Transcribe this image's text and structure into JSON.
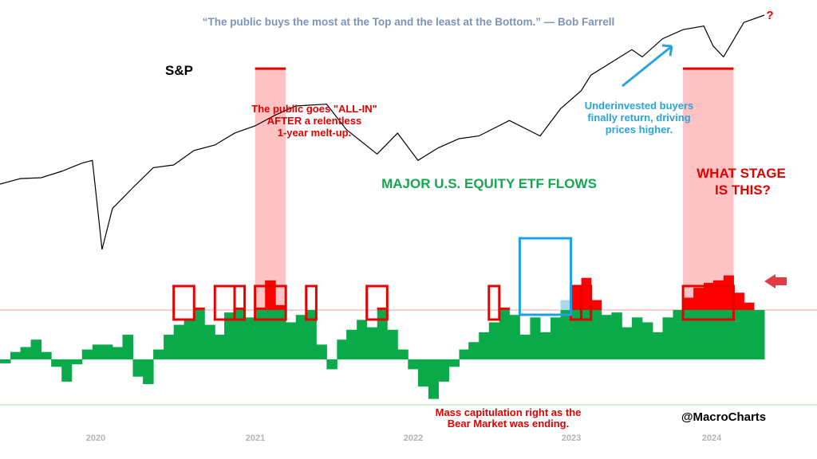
{
  "chart_data": {
    "type": "line",
    "quote": "“The public buys the most at the Top and the least at the Bottom.” — Bob Farrell",
    "title": "MAJOR U.S. EQUITY ETF FLOWS",
    "series_label": "S&P",
    "x_tick_labels": [
      "2020",
      "2021",
      "2022",
      "2023",
      "2024"
    ],
    "axes_visible": false,
    "grid": false,
    "colors": {
      "sp_line": "#000000",
      "flows_positive": "#0aaa4a",
      "flows_negative": "#0aaa4a",
      "flows_extreme": "#ff0000",
      "flows_extreme_2023": "#a6d9ea",
      "highlight_band": "#ffb8b8",
      "threshold_line": "#f3a5a5",
      "box_red": "#e60000",
      "box_blue": "#1da1e6",
      "annotation_red": "#e00000",
      "annotation_blue": "#29a3dd"
    },
    "sp_path": [
      [
        "2019-05",
        0.72
      ],
      [
        "2019-07",
        0.78
      ],
      [
        "2019-09",
        0.79
      ],
      [
        "2019-11",
        0.86
      ],
      [
        "2020-01",
        0.95
      ],
      [
        "2020-02",
        0.98
      ],
      [
        "2020-03",
        0.0
      ],
      [
        "2020-04",
        0.45
      ],
      [
        "2020-06",
        0.68
      ],
      [
        "2020-08",
        0.9
      ],
      [
        "2020-10",
        0.93
      ],
      [
        "2020-12",
        1.09
      ],
      [
        "2021-02",
        1.15
      ],
      [
        "2021-04",
        1.28
      ],
      [
        "2021-06",
        1.36
      ],
      [
        "2021-08",
        1.48
      ],
      [
        "2021-10",
        1.58
      ],
      [
        "2022-01",
        1.6
      ],
      [
        "2022-03",
        1.32
      ],
      [
        "2022-06",
        1.05
      ],
      [
        "2022-08",
        1.28
      ],
      [
        "2022-10",
        0.98
      ],
      [
        "2022-12",
        1.12
      ],
      [
        "2023-02",
        1.22
      ],
      [
        "2023-04",
        1.25
      ],
      [
        "2023-07",
        1.42
      ],
      [
        "2023-10",
        1.25
      ],
      [
        "2023-12",
        1.55
      ],
      [
        "2024-02",
        1.75
      ],
      [
        "2024-03",
        1.92
      ],
      [
        "2024-05",
        2.06
      ],
      [
        "2024-07",
        2.2
      ],
      [
        "2024-08",
        2.12
      ],
      [
        "2024-10",
        2.32
      ],
      [
        "2024-12",
        2.42
      ],
      [
        "2025-02",
        2.46
      ],
      [
        "2025-03",
        2.24
      ],
      [
        "2025-04",
        2.12
      ],
      [
        "2025-06",
        2.5
      ],
      [
        "2025-08",
        2.58
      ]
    ],
    "etf_flows": [
      [
        "2019-05",
        -0.08
      ],
      [
        "2019-06",
        0.15
      ],
      [
        "2019-07",
        0.25
      ],
      [
        "2019-08",
        0.4
      ],
      [
        "2019-09",
        0.15
      ],
      [
        "2019-10",
        -0.15
      ],
      [
        "2019-11",
        -0.45
      ],
      [
        "2019-12",
        -0.1
      ],
      [
        "2020-01",
        0.2
      ],
      [
        "2020-02",
        0.3
      ],
      [
        "2020-03",
        0.3
      ],
      [
        "2020-04",
        0.25
      ],
      [
        "2020-05",
        0.5
      ],
      [
        "2020-06",
        -0.35
      ],
      [
        "2020-07",
        -0.5
      ],
      [
        "2020-08",
        0.2
      ],
      [
        "2020-09",
        0.5
      ],
      [
        "2020-10",
        0.7
      ],
      [
        "2020-11",
        0.8
      ],
      [
        "2020-12",
        1.05
      ],
      [
        "2021-01",
        0.7
      ],
      [
        "2021-02",
        0.5
      ],
      [
        "2021-03",
        0.95
      ],
      [
        "2021-04",
        1.05
      ],
      [
        "2021-05",
        0.85
      ],
      [
        "2021-06",
        1.05
      ],
      [
        "2021-07",
        1.6
      ],
      [
        "2021-08",
        1.1
      ],
      [
        "2021-09",
        0.75
      ],
      [
        "2021-10",
        0.9
      ],
      [
        "2021-11",
        1.0
      ],
      [
        "2021-12",
        0.3
      ],
      [
        "2022-01",
        -0.2
      ],
      [
        "2022-02",
        0.4
      ],
      [
        "2022-03",
        0.6
      ],
      [
        "2022-04",
        0.8
      ],
      [
        "2022-05",
        0.65
      ],
      [
        "2022-06",
        1.05
      ],
      [
        "2022-07",
        0.6
      ],
      [
        "2022-08",
        0.2
      ],
      [
        "2022-09",
        -0.2
      ],
      [
        "2022-10",
        -0.55
      ],
      [
        "2022-11",
        -0.8
      ],
      [
        "2022-12",
        -0.45
      ],
      [
        "2023-01",
        -0.15
      ],
      [
        "2023-02",
        0.2
      ],
      [
        "2023-03",
        0.35
      ],
      [
        "2023-04",
        0.55
      ],
      [
        "2023-05",
        0.75
      ],
      [
        "2023-06",
        1.05
      ],
      [
        "2023-07",
        0.9
      ],
      [
        "2023-08",
        0.5
      ],
      [
        "2023-09",
        0.85
      ],
      [
        "2023-10",
        0.55
      ],
      [
        "2023-11",
        0.85
      ],
      [
        "2023-12",
        1.2
      ],
      [
        "2024-01",
        1.5
      ],
      [
        "2024-02",
        1.65
      ],
      [
        "2024-03",
        1.2
      ],
      [
        "2024-04",
        0.9
      ],
      [
        "2024-05",
        0.95
      ],
      [
        "2024-06",
        0.65
      ],
      [
        "2024-07",
        0.85
      ],
      [
        "2024-08",
        0.75
      ],
      [
        "2024-09",
        0.55
      ],
      [
        "2024-10",
        0.85
      ],
      [
        "2024-11",
        1.0
      ],
      [
        "2024-12",
        1.25
      ],
      [
        "2025-01",
        1.45
      ],
      [
        "2025-02",
        1.55
      ],
      [
        "2025-03",
        1.6
      ],
      [
        "2025-04",
        1.7
      ],
      [
        "2025-05",
        1.35
      ],
      [
        "2025-06",
        1.15
      ],
      [
        "2025-07",
        1.0
      ]
    ],
    "flows_threshold": 1.0,
    "highlight_bands": [
      {
        "start": "2021-06",
        "end": "2021-09"
      },
      {
        "start": "2024-12",
        "end": "2025-05"
      }
    ],
    "peak_markers": [
      {
        "start": "2021-06",
        "end": "2021-09"
      },
      {
        "start": "2024-12",
        "end": "2025-05"
      }
    ],
    "red_boxes": [
      {
        "start": "2020-10",
        "end": "2020-12"
      },
      {
        "start": "2021-02",
        "end": "2021-04"
      },
      {
        "start": "2021-04",
        "end": "2021-05"
      },
      {
        "start": "2021-06",
        "end": "2021-09"
      },
      {
        "start": "2021-11",
        "end": "2021-12"
      },
      {
        "start": "2022-05",
        "end": "2022-07"
      },
      {
        "start": "2023-05",
        "end": "2023-06"
      },
      {
        "start": "2024-01",
        "end": "2024-02"
      },
      {
        "start": "2024-02",
        "end": "2024-03"
      },
      {
        "start": "2024-12",
        "end": "2025-05"
      }
    ],
    "blue_box": {
      "start": "2023-08",
      "end": "2024-01"
    },
    "annotations": {
      "all_in": [
        "The public goes \"ALL-IN\"",
        "AFTER a relentless",
        "1-year melt-up."
      ],
      "underinvested": [
        "Underinvested buyers",
        "finally return, driving",
        "prices higher."
      ],
      "capitulation": [
        "Mass capitulation right as the",
        "Bear Market was ending."
      ],
      "stage": [
        "WHAT STAGE",
        "IS THIS?"
      ],
      "question_mark": "?"
    },
    "watermark": "@MacroCharts"
  }
}
